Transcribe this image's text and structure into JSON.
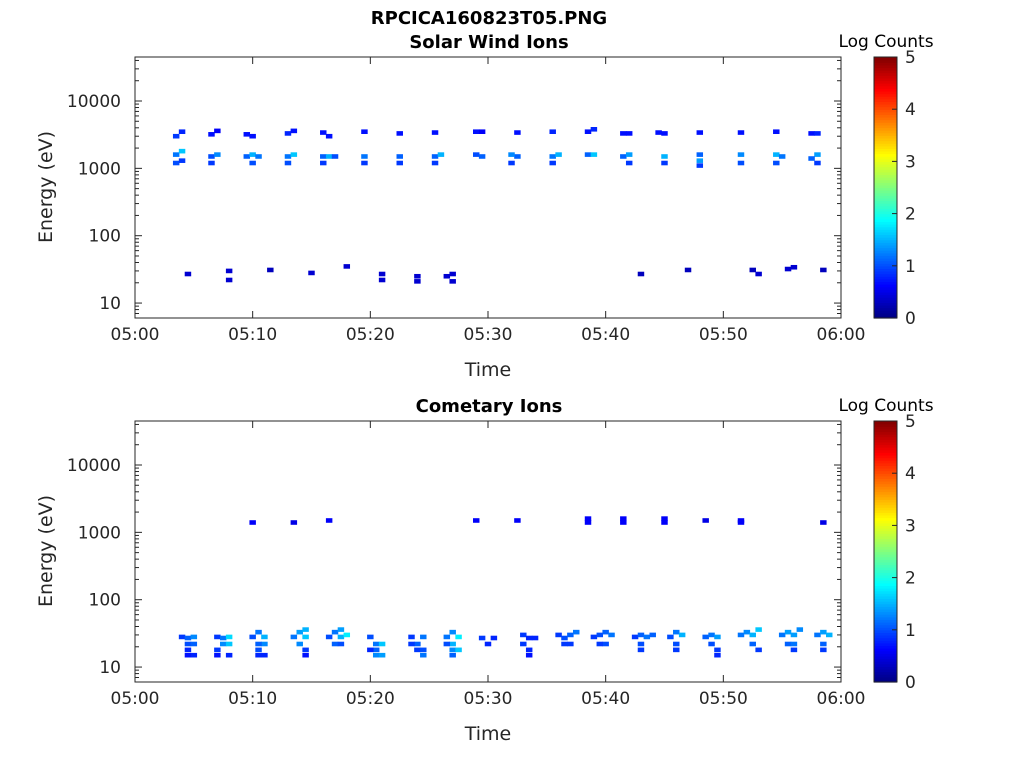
{
  "figure": {
    "suptitle": "RPCICA160823T05.PNG"
  },
  "colormap": {
    "name": "jet",
    "range": [
      0,
      5
    ],
    "label": "Log Counts",
    "ticks": [
      "0",
      "1",
      "2",
      "3",
      "4",
      "5"
    ]
  },
  "chart_data": [
    {
      "type": "heatmap",
      "title": "Solar Wind Ions",
      "xlabel": "Time",
      "ylabel": "Energy (eV)",
      "xlim": [
        "05:00",
        "06:00"
      ],
      "x_ticks": [
        "05:00",
        "05:10",
        "05:20",
        "05:30",
        "05:40",
        "05:50",
        "06:00"
      ],
      "y_scale": "log",
      "ylim": [
        6,
        45000
      ],
      "y_ticks": [
        "10",
        "100",
        "1000",
        "10000"
      ],
      "colorbar_range": [
        0,
        5
      ],
      "cells": [
        [
          3.5,
          3000,
          0.9
        ],
        [
          4.0,
          3500,
          0.8
        ],
        [
          3.5,
          1600,
          1.2
        ],
        [
          4.0,
          1800,
          1.6
        ],
        [
          3.5,
          1200,
          1.0
        ],
        [
          4.0,
          1300,
          0.9
        ],
        [
          6.5,
          3200,
          0.7
        ],
        [
          7.0,
          3600,
          0.6
        ],
        [
          6.5,
          1500,
          1.0
        ],
        [
          7.0,
          1600,
          1.3
        ],
        [
          6.5,
          1200,
          0.9
        ],
        [
          9.5,
          3200,
          0.7
        ],
        [
          10.0,
          3000,
          0.7
        ],
        [
          9.5,
          1500,
          1.1
        ],
        [
          10.0,
          1600,
          1.5
        ],
        [
          10.5,
          1500,
          1.2
        ],
        [
          10.0,
          1200,
          1.0
        ],
        [
          13.0,
          3300,
          0.8
        ],
        [
          13.5,
          3600,
          0.7
        ],
        [
          13.0,
          1500,
          1.2
        ],
        [
          13.5,
          1600,
          1.6
        ],
        [
          13.0,
          1200,
          1.0
        ],
        [
          16.0,
          3400,
          0.7
        ],
        [
          16.5,
          3000,
          0.7
        ],
        [
          16.0,
          1500,
          1.1
        ],
        [
          16.5,
          1500,
          1.5
        ],
        [
          17.0,
          1500,
          1.0
        ],
        [
          16.0,
          1200,
          0.9
        ],
        [
          19.5,
          3500,
          0.7
        ],
        [
          19.5,
          1500,
          1.2
        ],
        [
          19.5,
          1200,
          0.9
        ],
        [
          22.5,
          3300,
          0.7
        ],
        [
          22.5,
          1500,
          1.1
        ],
        [
          22.5,
          1200,
          0.9
        ],
        [
          25.5,
          3400,
          0.7
        ],
        [
          25.5,
          1500,
          1.1
        ],
        [
          26.0,
          1600,
          1.5
        ],
        [
          25.5,
          1200,
          0.9
        ],
        [
          29.0,
          3500,
          0.7
        ],
        [
          29.5,
          3500,
          0.6
        ],
        [
          29.0,
          1600,
          1.0
        ],
        [
          29.5,
          1500,
          1.1
        ],
        [
          32.5,
          3400,
          0.7
        ],
        [
          32.5,
          1500,
          1.1
        ],
        [
          32.0,
          1600,
          1.3
        ],
        [
          32.0,
          1200,
          0.9
        ],
        [
          35.5,
          3500,
          0.8
        ],
        [
          35.5,
          1500,
          1.2
        ],
        [
          36.0,
          1600,
          1.5
        ],
        [
          35.5,
          1200,
          0.9
        ],
        [
          38.5,
          3500,
          0.7
        ],
        [
          39.0,
          3800,
          0.8
        ],
        [
          38.5,
          1600,
          1.1
        ],
        [
          39.0,
          1600,
          1.6
        ],
        [
          41.5,
          3300,
          0.7
        ],
        [
          42.0,
          3300,
          0.7
        ],
        [
          41.5,
          1500,
          1.1
        ],
        [
          42.0,
          1600,
          1.4
        ],
        [
          42.0,
          1200,
          0.9
        ],
        [
          44.5,
          3400,
          0.7
        ],
        [
          45.0,
          3300,
          0.7
        ],
        [
          45.0,
          1500,
          1.5
        ],
        [
          45.0,
          1200,
          0.9
        ],
        [
          48.0,
          3400,
          0.7
        ],
        [
          48.0,
          1600,
          1.1
        ],
        [
          48.0,
          1300,
          1.4
        ],
        [
          48.0,
          1100,
          0.9
        ],
        [
          51.5,
          3400,
          0.7
        ],
        [
          51.5,
          1600,
          1.3
        ],
        [
          51.5,
          1200,
          1.0
        ],
        [
          54.5,
          3500,
          0.7
        ],
        [
          54.5,
          1600,
          1.5
        ],
        [
          55.0,
          1500,
          1.2
        ],
        [
          54.5,
          1200,
          1.0
        ],
        [
          57.5,
          3300,
          0.7
        ],
        [
          58.0,
          3300,
          0.8
        ],
        [
          58.0,
          1600,
          1.4
        ],
        [
          57.5,
          1400,
          1.1
        ],
        [
          58.0,
          1200,
          0.9
        ],
        [
          4.5,
          27,
          0.4
        ],
        [
          8.0,
          30,
          0.4
        ],
        [
          8.0,
          22,
          0.4
        ],
        [
          11.5,
          31,
          0.3
        ],
        [
          15.0,
          28,
          0.4
        ],
        [
          18.0,
          35,
          0.4
        ],
        [
          21.0,
          27,
          0.4
        ],
        [
          21.0,
          22,
          0.4
        ],
        [
          24.0,
          25,
          0.4
        ],
        [
          24.0,
          21,
          0.4
        ],
        [
          27.0,
          27,
          0.4
        ],
        [
          27.0,
          21,
          0.4
        ],
        [
          26.5,
          25,
          0.4
        ],
        [
          43.0,
          27,
          0.3
        ],
        [
          47.0,
          31,
          0.3
        ],
        [
          52.5,
          31,
          0.3
        ],
        [
          53.0,
          27,
          0.4
        ],
        [
          55.5,
          32,
          0.4
        ],
        [
          56.0,
          34,
          0.4
        ],
        [
          58.5,
          31,
          0.3
        ]
      ]
    },
    {
      "type": "heatmap",
      "title": "Cometary Ions",
      "xlabel": "Time",
      "ylabel": "Energy (eV)",
      "xlim": [
        "05:00",
        "06:00"
      ],
      "x_ticks": [
        "05:00",
        "05:10",
        "05:20",
        "05:30",
        "05:40",
        "05:50",
        "06:00"
      ],
      "y_scale": "log",
      "ylim": [
        6,
        45000
      ],
      "y_ticks": [
        "10",
        "100",
        "1000",
        "10000"
      ],
      "colorbar_range": [
        0,
        5
      ],
      "cells": [
        [
          10.0,
          1400,
          0.6
        ],
        [
          13.5,
          1400,
          0.5
        ],
        [
          16.5,
          1500,
          0.6
        ],
        [
          29.0,
          1500,
          0.6
        ],
        [
          32.5,
          1500,
          0.6
        ],
        [
          38.5,
          1400,
          0.6
        ],
        [
          38.5,
          1600,
          0.6
        ],
        [
          41.5,
          1600,
          0.6
        ],
        [
          41.5,
          1400,
          0.6
        ],
        [
          45.0,
          1600,
          0.6
        ],
        [
          45.0,
          1400,
          0.6
        ],
        [
          48.5,
          1500,
          0.5
        ],
        [
          51.5,
          1500,
          0.6
        ],
        [
          51.5,
          1400,
          0.6
        ],
        [
          58.5,
          1400,
          0.5
        ],
        [
          4.0,
          28,
          0.9
        ],
        [
          4.5,
          27,
          1.1
        ],
        [
          4.5,
          22,
          1.0
        ],
        [
          4.5,
          18,
          0.8
        ],
        [
          4.5,
          15,
          0.7
        ],
        [
          5.0,
          28,
          1.3
        ],
        [
          5.0,
          22,
          1.1
        ],
        [
          5.0,
          15,
          0.8
        ],
        [
          7.0,
          28,
          0.9
        ],
        [
          7.5,
          27,
          1.2
        ],
        [
          7.5,
          22,
          1.3
        ],
        [
          8.0,
          28,
          1.7
        ],
        [
          8.0,
          22,
          1.6
        ],
        [
          7.0,
          18,
          0.9
        ],
        [
          7.0,
          15,
          0.7
        ],
        [
          8.0,
          15,
          0.8
        ],
        [
          10.0,
          28,
          1.0
        ],
        [
          10.5,
          33,
          1.2
        ],
        [
          11.0,
          28,
          1.5
        ],
        [
          11.0,
          22,
          1.3
        ],
        [
          10.5,
          22,
          1.1
        ],
        [
          10.5,
          18,
          1.0
        ],
        [
          10.5,
          15,
          0.8
        ],
        [
          11.0,
          15,
          0.8
        ],
        [
          13.5,
          28,
          1.2
        ],
        [
          14.0,
          33,
          1.4
        ],
        [
          14.5,
          28,
          1.6
        ],
        [
          14.0,
          22,
          1.3
        ],
        [
          14.5,
          36,
          1.5
        ],
        [
          14.5,
          18,
          0.9
        ],
        [
          14.5,
          15,
          0.7
        ],
        [
          16.5,
          28,
          1.0
        ],
        [
          17.0,
          33,
          1.2
        ],
        [
          17.5,
          28,
          1.5
        ],
        [
          17.5,
          36,
          1.4
        ],
        [
          17.0,
          22,
          1.1
        ],
        [
          18.0,
          30,
          1.8
        ],
        [
          17.5,
          22,
          1.0
        ],
        [
          20.0,
          28,
          1.0
        ],
        [
          20.5,
          22,
          1.2
        ],
        [
          21.0,
          22,
          1.6
        ],
        [
          20.5,
          18,
          1.1
        ],
        [
          20.5,
          15,
          1.3
        ],
        [
          21.0,
          15,
          1.4
        ],
        [
          20.0,
          18,
          0.8
        ],
        [
          23.5,
          28,
          0.9
        ],
        [
          24.0,
          22,
          1.1
        ],
        [
          24.5,
          28,
          1.2
        ],
        [
          24.0,
          18,
          0.9
        ],
        [
          23.5,
          22,
          0.9
        ],
        [
          24.5,
          18,
          1.0
        ],
        [
          24.5,
          15,
          1.2
        ],
        [
          26.5,
          28,
          1.2
        ],
        [
          27.0,
          33,
          1.3
        ],
        [
          27.0,
          22,
          1.5
        ],
        [
          27.5,
          28,
          1.8
        ],
        [
          27.0,
          18,
          1.3
        ],
        [
          27.5,
          18,
          1.6
        ],
        [
          26.5,
          22,
          1.0
        ],
        [
          27.0,
          15,
          1.1
        ],
        [
          29.5,
          27,
          0.9
        ],
        [
          30.0,
          22,
          0.8
        ],
        [
          30.5,
          27,
          0.8
        ],
        [
          33.0,
          30,
          0.9
        ],
        [
          33.5,
          27,
          0.8
        ],
        [
          33.0,
          22,
          0.9
        ],
        [
          33.5,
          18,
          0.8
        ],
        [
          33.5,
          15,
          0.7
        ],
        [
          34.0,
          27,
          0.8
        ],
        [
          36.0,
          30,
          0.9
        ],
        [
          36.5,
          27,
          1.0
        ],
        [
          37.0,
          30,
          1.1
        ],
        [
          37.5,
          33,
          1.2
        ],
        [
          36.5,
          22,
          0.9
        ],
        [
          37.0,
          22,
          0.9
        ],
        [
          39.0,
          28,
          0.9
        ],
        [
          39.5,
          30,
          1.0
        ],
        [
          40.0,
          33,
          1.1
        ],
        [
          40.5,
          30,
          1.2
        ],
        [
          40.0,
          22,
          1.0
        ],
        [
          39.5,
          22,
          0.9
        ],
        [
          42.5,
          28,
          0.9
        ],
        [
          43.0,
          30,
          1.1
        ],
        [
          43.5,
          28,
          1.2
        ],
        [
          43.0,
          22,
          1.0
        ],
        [
          43.0,
          18,
          0.9
        ],
        [
          44.0,
          30,
          1.1
        ],
        [
          45.5,
          28,
          1.0
        ],
        [
          46.0,
          33,
          1.2
        ],
        [
          46.5,
          30,
          1.5
        ],
        [
          46.0,
          22,
          1.0
        ],
        [
          46.0,
          18,
          0.9
        ],
        [
          48.5,
          28,
          1.1
        ],
        [
          49.0,
          30,
          1.2
        ],
        [
          49.5,
          28,
          1.4
        ],
        [
          49.0,
          22,
          1.0
        ],
        [
          49.5,
          18,
          0.9
        ],
        [
          49.5,
          15,
          0.8
        ],
        [
          51.5,
          30,
          1.2
        ],
        [
          52.0,
          33,
          1.3
        ],
        [
          52.5,
          30,
          1.5
        ],
        [
          53.0,
          36,
          1.6
        ],
        [
          52.5,
          22,
          1.1
        ],
        [
          53.0,
          18,
          0.9
        ],
        [
          55.0,
          30,
          1.2
        ],
        [
          55.5,
          33,
          1.4
        ],
        [
          56.0,
          30,
          1.4
        ],
        [
          56.5,
          36,
          1.3
        ],
        [
          55.5,
          22,
          1.1
        ],
        [
          56.0,
          22,
          1.2
        ],
        [
          56.0,
          18,
          0.9
        ],
        [
          58.0,
          30,
          1.2
        ],
        [
          58.5,
          33,
          1.4
        ],
        [
          59.0,
          30,
          1.5
        ],
        [
          58.5,
          22,
          1.1
        ],
        [
          58.5,
          18,
          0.9
        ]
      ]
    }
  ]
}
